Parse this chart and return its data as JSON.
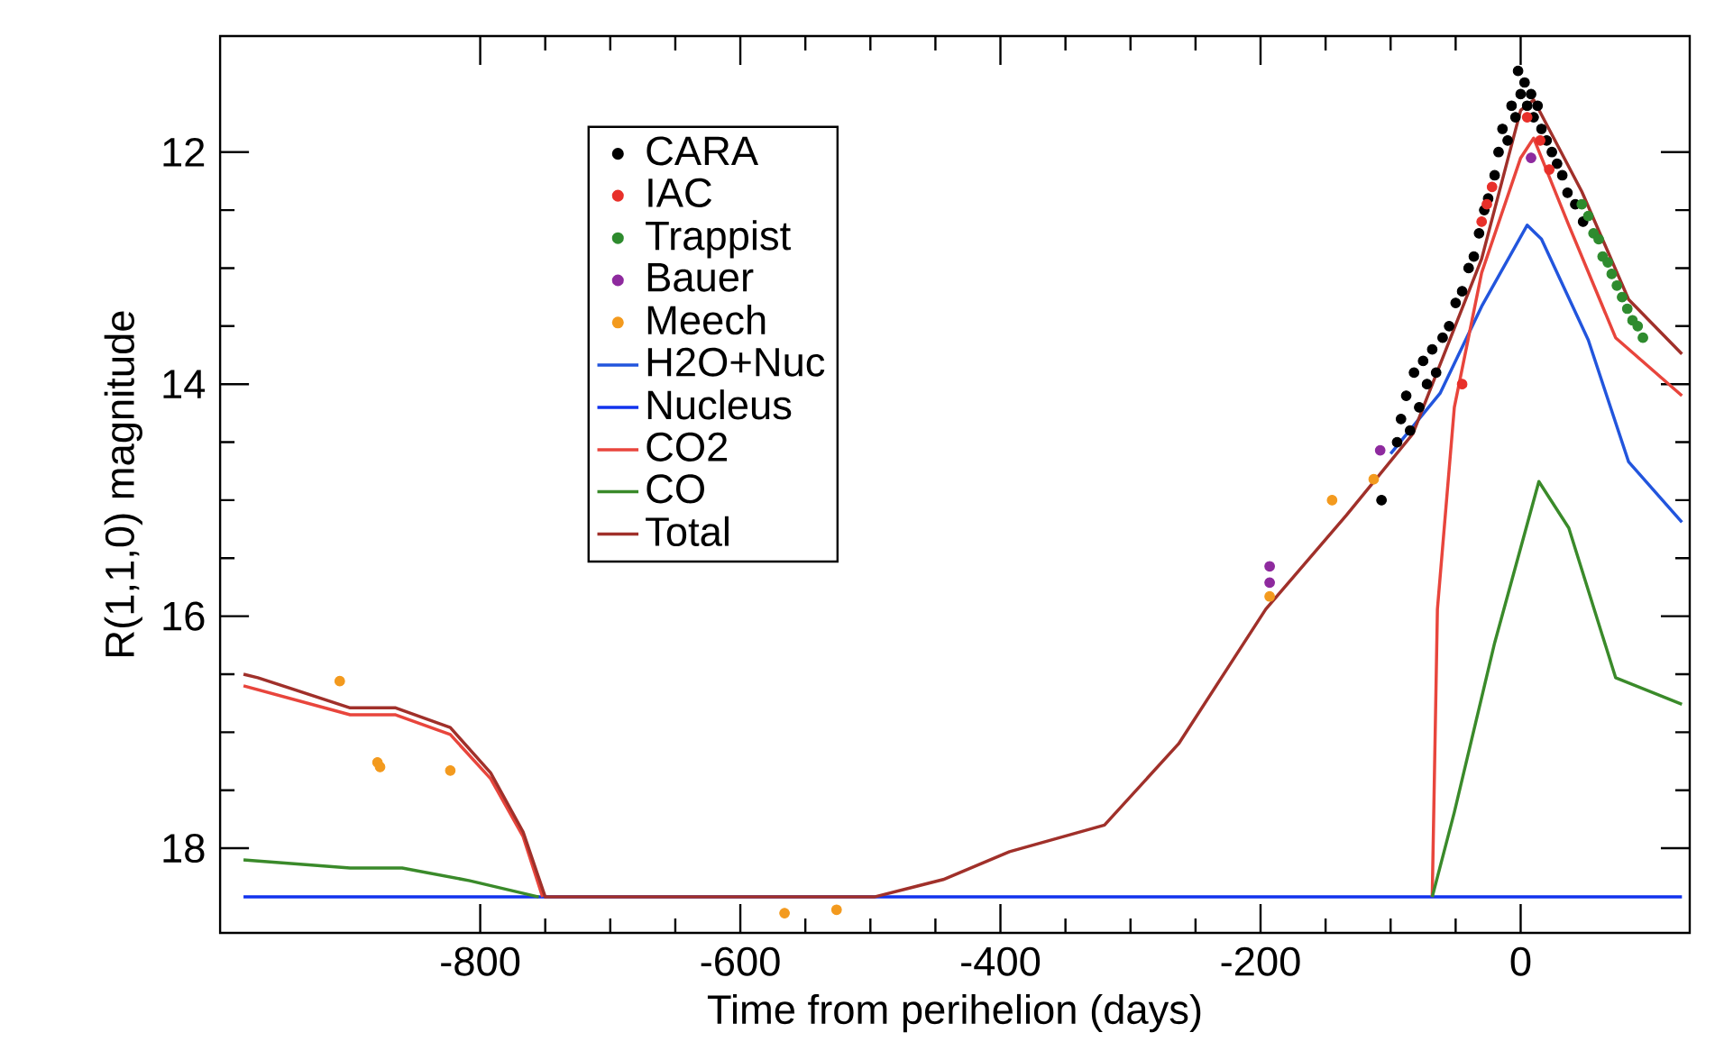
{
  "chart_data": {
    "type": "line",
    "xlabel": "Time from perihelion (days)",
    "ylabel": "R(1,1,0) magnitude",
    "xlim": [
      -1000,
      130
    ],
    "ylim": [
      18.73,
      11
    ],
    "xticks": [
      -800,
      -600,
      -400,
      -200,
      0
    ],
    "yticks": [
      12,
      14,
      16,
      18
    ],
    "legend": "top left",
    "grid": false,
    "series": [
      {
        "name": "CARA",
        "type": "scatter",
        "marker": "circle",
        "color": "#000000",
        "x": [
          -107,
          -95,
          -92,
          -88,
          -85,
          -82,
          -78,
          -75,
          -72,
          -68,
          -65,
          -60,
          -55,
          -50,
          -45,
          -40,
          -36,
          -32,
          -28,
          -25,
          -20,
          -17,
          -14,
          -10,
          -7,
          -4,
          -2,
          0,
          3,
          5,
          8,
          10,
          13,
          16,
          20,
          24,
          28,
          32,
          36,
          42,
          48
        ],
        "values": [
          15.0,
          14.5,
          14.3,
          14.1,
          14.4,
          13.9,
          14.2,
          13.8,
          14.0,
          13.7,
          13.9,
          13.6,
          13.5,
          13.3,
          13.2,
          13.0,
          12.9,
          12.7,
          12.5,
          12.4,
          12.2,
          12.0,
          11.8,
          11.9,
          11.6,
          11.7,
          11.3,
          11.5,
          11.4,
          11.6,
          11.5,
          11.7,
          11.6,
          11.8,
          11.9,
          12.0,
          12.1,
          12.2,
          12.35,
          12.45,
          12.6
        ]
      },
      {
        "name": "IAC",
        "type": "scatter",
        "marker": "circle",
        "color": "#e8302a",
        "x": [
          -45,
          -30,
          -26,
          -22,
          5,
          15,
          22
        ],
        "values": [
          14.0,
          12.6,
          12.45,
          12.3,
          11.7,
          11.9,
          12.15
        ]
      },
      {
        "name": "Trappist",
        "type": "scatter",
        "marker": "circle",
        "color": "#2e8b2e",
        "x": [
          47,
          52,
          56,
          60,
          63,
          67,
          70,
          74,
          78,
          82,
          86,
          90,
          94
        ],
        "values": [
          12.45,
          12.55,
          12.7,
          12.75,
          12.9,
          12.95,
          13.05,
          13.15,
          13.25,
          13.35,
          13.45,
          13.5,
          13.6
        ]
      },
      {
        "name": "Bauer",
        "type": "scatter",
        "marker": "circle",
        "color": "#8e2a9e",
        "x": [
          -193,
          -193,
          -108,
          8
        ],
        "values": [
          15.57,
          15.71,
          14.57,
          12.05
        ]
      },
      {
        "name": "Meech",
        "type": "scatter",
        "marker": "circle",
        "color": "#f39a1e",
        "x": [
          -908,
          -879,
          -877,
          -823,
          -566,
          -526,
          -193,
          -145,
          -113
        ],
        "values": [
          16.56,
          17.26,
          17.3,
          17.33,
          18.56,
          18.53,
          15.83,
          15.0,
          14.82
        ]
      },
      {
        "name": "H2O+Nuc",
        "color": "#2255dd",
        "x": [
          -100,
          -62,
          -30,
          5,
          16,
          52,
          83,
          124
        ],
        "values": [
          14.6,
          14.08,
          13.33,
          12.63,
          12.75,
          13.62,
          14.67,
          15.19
        ]
      },
      {
        "name": "Nucleus",
        "color": "#1133ee",
        "x": [
          -982,
          124
        ],
        "values": [
          18.42,
          18.42
        ]
      },
      {
        "name": "CO2",
        "color": "#e8453c",
        "x": [
          -982,
          -900,
          -865,
          -823,
          -792,
          -767,
          -752,
          -700,
          -68,
          -64,
          -51,
          -30,
          0,
          10,
          37,
          73,
          124
        ],
        "values": [
          16.6,
          16.85,
          16.85,
          17.02,
          17.4,
          17.9,
          18.42,
          null,
          18.42,
          15.94,
          14.2,
          13.04,
          12.05,
          11.88,
          12.63,
          13.6,
          14.1
        ]
      },
      {
        "name": "CO",
        "color": "#3a8a2a",
        "x": [
          -982,
          -900,
          -860,
          -808,
          -755,
          -700,
          -68,
          -51,
          -20,
          14,
          37,
          73,
          124
        ],
        "values": [
          18.1,
          18.17,
          18.17,
          18.28,
          18.42,
          null,
          18.42,
          17.69,
          16.23,
          14.84,
          15.24,
          16.53,
          16.76
        ]
      },
      {
        "name": "Total",
        "color": "#a0302a",
        "x": [
          -982,
          -971,
          -900,
          -865,
          -823,
          -792,
          -767,
          -750,
          -497,
          -444,
          -393,
          -320,
          -263,
          -196,
          -134,
          -83,
          -30,
          0,
          10,
          47,
          83,
          124
        ],
        "values": [
          16.5,
          16.53,
          16.79,
          16.79,
          16.96,
          17.35,
          17.86,
          18.42,
          18.42,
          18.27,
          18.03,
          17.8,
          17.1,
          15.94,
          15.13,
          14.43,
          12.92,
          11.64,
          11.55,
          12.34,
          13.27,
          13.74
        ]
      }
    ]
  }
}
